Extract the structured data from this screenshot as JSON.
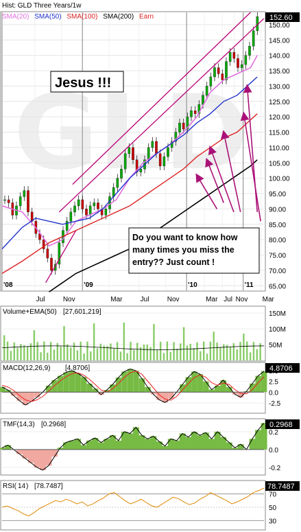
{
  "header": {
    "title": "Hist: GLD Three Years/1w",
    "legend": [
      {
        "label": "SMA(20)",
        "color": "#e070e0"
      },
      {
        "label": "SMA(50)",
        "color": "#2233cc"
      },
      {
        "label": "SMA(100)",
        "color": "#dd2222"
      },
      {
        "label": "SMA(200)",
        "color": "#000000"
      },
      {
        "label": "Earn",
        "color": "#dd2222"
      }
    ],
    "last_price": "152.60"
  },
  "annotations": {
    "jesus": "Jesus !!!",
    "callout_line1": "Do you want to know how",
    "callout_line2": "many times you miss the",
    "callout_line3": "entry?? Just count !"
  },
  "panels": {
    "volume_label": "Volume+EMA(50)",
    "volume_value": "[27,601,219]",
    "macd_label": "MACD(12,26,9)",
    "macd_value": "[4.8706]",
    "macd_last": "4.8706",
    "tmf_label": "TMF(14,3)",
    "tmf_value": "[0.2968]",
    "tmf_last": "0.2968",
    "rsi_label": "RSI(",
    "rsi_period": "14",
    "rsi_close": ")",
    "rsi_value": "[78.7487]",
    "rsi_last": "78.7487"
  },
  "colors": {
    "price_up": "#00aa00",
    "price_down": "#cc0000",
    "sma20": "#e070e0",
    "sma50": "#2233cc",
    "sma100": "#dd2222",
    "sma200": "#000000",
    "trend": "#bb0077",
    "arrow": "#aa1177",
    "volume_bar": "#88cc66",
    "macd_fill_pos": "#77bb44",
    "macd_fill_neg": "#f0a8a0",
    "orange": "#e08800"
  },
  "chart_data": [
    {
      "type": "line",
      "title": "Hist: GLD Three Years/1w",
      "x_ticks": [
        "'08",
        "Jul",
        "Nov",
        "'09",
        "Mar",
        "Jul",
        "Nov",
        "'10",
        "Mar",
        "Jul",
        "Nov",
        "'11",
        "Mar"
      ],
      "y_ticks": [
        65,
        70,
        75,
        80,
        85,
        90,
        95,
        100,
        105,
        110,
        115,
        120,
        125,
        130,
        135,
        140,
        145,
        150
      ],
      "ylim": [
        63.5,
        154
      ],
      "series": [
        {
          "name": "SMA(20)",
          "values": [
            [
              0,
              91
            ],
            [
              6,
              89
            ],
            [
              10,
              84
            ],
            [
              14,
              78
            ],
            [
              18,
              80
            ],
            [
              22,
              86
            ],
            [
              26,
              88
            ],
            [
              30,
              90
            ],
            [
              34,
              93
            ],
            [
              38,
              100
            ],
            [
              42,
              105
            ],
            [
              46,
              108
            ],
            [
              50,
              111
            ],
            [
              54,
              115
            ],
            [
              58,
              120
            ],
            [
              62,
              128
            ],
            [
              66,
              132
            ],
            [
              70,
              134
            ],
            [
              74,
              136
            ],
            [
              76,
              140
            ]
          ]
        },
        {
          "name": "SMA(50)",
          "values": [
            [
              0,
              77
            ],
            [
              6,
              84
            ],
            [
              10,
              87
            ],
            [
              14,
              86
            ],
            [
              18,
              85
            ],
            [
              22,
              86
            ],
            [
              26,
              87
            ],
            [
              30,
              90
            ],
            [
              34,
              95
            ],
            [
              38,
              100
            ],
            [
              42,
              104
            ],
            [
              46,
              108
            ],
            [
              50,
              111
            ],
            [
              54,
              114
            ],
            [
              58,
              118
            ],
            [
              62,
              121
            ],
            [
              66,
              125
            ],
            [
              70,
              127
            ],
            [
              74,
              131
            ],
            [
              76,
              133
            ]
          ]
        },
        {
          "name": "SMA(100)",
          "values": [
            [
              0,
              69
            ],
            [
              6,
              73
            ],
            [
              10,
              76
            ],
            [
              14,
              79
            ],
            [
              18,
              81
            ],
            [
              22,
              83
            ],
            [
              26,
              85
            ],
            [
              30,
              87
            ],
            [
              34,
              89
            ],
            [
              38,
              91
            ],
            [
              42,
              94
            ],
            [
              46,
              97
            ],
            [
              50,
              100
            ],
            [
              54,
              103
            ],
            [
              58,
              107
            ],
            [
              62,
              110
            ],
            [
              66,
              113
            ],
            [
              70,
              115
            ],
            [
              74,
              119
            ],
            [
              76,
              121
            ]
          ]
        },
        {
          "name": "SMA(200)",
          "values": [
            [
              14,
              63
            ],
            [
              18,
              66
            ],
            [
              22,
              69
            ],
            [
              26,
              71
            ],
            [
              30,
              73
            ],
            [
              34,
              75
            ],
            [
              38,
              77
            ],
            [
              42,
              80
            ],
            [
              46,
              83
            ],
            [
              50,
              86
            ],
            [
              54,
              89
            ],
            [
              58,
              92
            ],
            [
              62,
              95
            ],
            [
              66,
              98
            ],
            [
              70,
              101
            ],
            [
              74,
              104
            ],
            [
              76,
              106
            ]
          ]
        }
      ],
      "price": [
        93,
        92,
        88,
        91,
        94,
        96,
        89,
        86,
        82,
        80,
        77,
        74,
        70,
        72,
        79,
        83,
        86,
        89,
        91,
        93,
        90,
        88,
        91,
        92,
        90,
        88,
        90,
        94,
        97,
        100,
        103,
        108,
        110,
        106,
        102,
        103,
        106,
        110,
        112,
        108,
        104,
        107,
        110,
        112,
        115,
        118,
        116,
        120,
        122,
        121,
        124,
        127,
        130,
        133,
        136,
        134,
        132,
        138,
        141,
        139,
        136,
        137,
        140,
        143,
        148,
        152.6
      ],
      "last": 152.6
    },
    {
      "type": "bar",
      "title": "Volume+EMA(50)",
      "y_ticks": [
        "50M",
        "100M",
        "150M"
      ],
      "ylim": [
        0,
        170
      ],
      "last": "27,601,219"
    },
    {
      "type": "area",
      "title": "MACD(12,26,9)",
      "y_ticks": [
        -2.5,
        0.0,
        2.5,
        5.0
      ],
      "ylim": [
        -4.6,
        6.6
      ],
      "macd": [
        1.2,
        0.5,
        -0.8,
        -2.0,
        -3.0,
        -2.2,
        -1.2,
        0.0,
        1.5,
        2.8,
        3.8,
        4.6,
        5.0,
        4.4,
        3.5,
        2.0,
        0.8,
        -0.6,
        0.5,
        1.8,
        3.4,
        4.8,
        5.4,
        5.0,
        3.2,
        1.2,
        -0.5,
        -1.8,
        -2.4,
        -1.5,
        0.0,
        1.8,
        3.5,
        4.8,
        4.2,
        2.5,
        0.6,
        1.5,
        2.8,
        1.2,
        -0.5,
        -1.2,
        0.2,
        2.0,
        3.8,
        4.87
      ],
      "signal": [
        1.6,
        1.2,
        0.4,
        -0.8,
        -1.8,
        -2.2,
        -1.8,
        -1.0,
        0.2,
        1.5,
        2.6,
        3.6,
        4.3,
        4.5,
        4.0,
        3.0,
        1.8,
        0.5,
        0.0,
        0.8,
        2.0,
        3.4,
        4.5,
        4.9,
        4.2,
        2.6,
        1.0,
        -0.6,
        -1.6,
        -1.9,
        -1.0,
        0.5,
        2.0,
        3.4,
        4.0,
        3.5,
        2.2,
        1.6,
        2.1,
        1.8,
        0.6,
        -0.3,
        -0.4,
        0.6,
        2.2,
        3.6
      ],
      "last": 4.8706
    },
    {
      "type": "area",
      "title": "TMF(14,3)",
      "y_ticks": [
        -0.2,
        0.0,
        0.2
      ],
      "ylim": [
        -0.27,
        0.33
      ],
      "values": [
        0.02,
        0.05,
        0.0,
        -0.05,
        -0.1,
        -0.15,
        -0.2,
        -0.23,
        -0.18,
        -0.08,
        0.02,
        0.08,
        0.1,
        0.12,
        0.05,
        0.1,
        0.13,
        0.08,
        0.12,
        0.16,
        0.1,
        0.2,
        0.18,
        0.25,
        0.16,
        0.12,
        0.15,
        0.09,
        0.04,
        0.12,
        0.1,
        0.18,
        0.14,
        0.2,
        0.16,
        0.19,
        0.12,
        0.2,
        0.14,
        0.08,
        0.02,
        0.06,
        0.0,
        0.12,
        0.22,
        0.2968
      ],
      "last": 0.2968
    },
    {
      "type": "line",
      "title": "RSI(14)",
      "y_ticks": [
        30,
        50,
        70
      ],
      "ylim": [
        18,
        88
      ],
      "values": [
        50,
        52,
        48,
        45,
        40,
        37,
        42,
        48,
        52,
        56,
        60,
        58,
        62,
        59,
        55,
        58,
        52,
        55,
        60,
        64,
        70,
        72,
        66,
        60,
        55,
        58,
        62,
        57,
        52,
        50,
        55,
        60,
        65,
        63,
        58,
        54,
        56,
        62,
        66,
        72,
        68,
        64,
        60,
        55,
        58,
        62,
        66,
        72,
        75,
        78.7487
      ],
      "last": 78.7487
    }
  ]
}
